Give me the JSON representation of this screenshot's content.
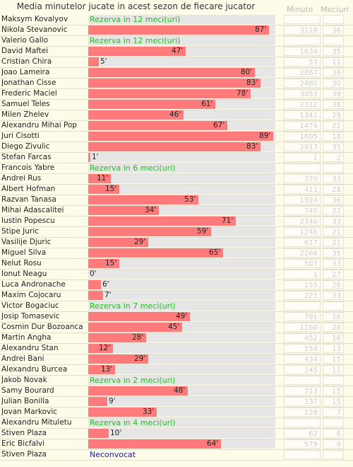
{
  "chart_data": {
    "type": "bar",
    "title": "Media minutelor jucate in acest sezon de fiecare jucator",
    "columns": {
      "minutes": "Minute",
      "matches": "Meciuri"
    },
    "xlim": [
      0,
      90
    ],
    "rows": [
      {
        "name": "Maksym Kovalyov",
        "status": "Rezerva in 12 meci(uri)",
        "avg": null,
        "avg_label": "",
        "minutes": "",
        "matches": ""
      },
      {
        "name": "Nikola Stevanovic",
        "status": "",
        "avg": 87,
        "avg_label": "87'",
        "minutes": "3118",
        "matches": "36"
      },
      {
        "name": "Valerio Gallo",
        "status": "Rezerva in 12 meci(uri)",
        "avg": null,
        "avg_label": "",
        "minutes": "",
        "matches": ""
      },
      {
        "name": "David Maftei",
        "status": "",
        "avg": 47,
        "avg_label": "47'",
        "minutes": "1634",
        "matches": "35"
      },
      {
        "name": "Cristian Chira",
        "status": "",
        "avg": 5,
        "avg_label": "5'",
        "minutes": "53",
        "matches": "11"
      },
      {
        "name": "Joao Lameira",
        "status": "",
        "avg": 80,
        "avg_label": "80'",
        "minutes": "2867",
        "matches": "36"
      },
      {
        "name": "Jonathan Cisse",
        "status": "",
        "avg": 83,
        "avg_label": "83'",
        "minutes": "2480",
        "matches": "30"
      },
      {
        "name": "Frederic Maciel",
        "status": "",
        "avg": 78,
        "avg_label": "78'",
        "minutes": "3053",
        "matches": "39"
      },
      {
        "name": "Samuel Teles",
        "status": "",
        "avg": 61,
        "avg_label": "61'",
        "minutes": "2312",
        "matches": "38"
      },
      {
        "name": "Milen Zhelev",
        "status": "",
        "avg": 46,
        "avg_label": "46'",
        "minutes": "1341",
        "matches": "29"
      },
      {
        "name": "Alexandru Mihai Pop",
        "status": "",
        "avg": 67,
        "avg_label": "67'",
        "minutes": "1474",
        "matches": "22"
      },
      {
        "name": "Juri Cisotti",
        "status": "",
        "avg": 89,
        "avg_label": "89'",
        "minutes": "1605",
        "matches": "18"
      },
      {
        "name": "Diego Zivulic",
        "status": "",
        "avg": 83,
        "avg_label": "83'",
        "minutes": "2913",
        "matches": "35"
      },
      {
        "name": "Stefan Farcas",
        "status": "",
        "avg": 1,
        "avg_label": "1'",
        "minutes": "1",
        "matches": "2"
      },
      {
        "name": "Francois Yabre",
        "status": "Rezerva in 6 meci(uri)",
        "avg": null,
        "avg_label": "",
        "minutes": "",
        "matches": ""
      },
      {
        "name": "Andrei Rus",
        "status": "",
        "avg": 11,
        "avg_label": "11'",
        "minutes": "370",
        "matches": "33"
      },
      {
        "name": "Albert Hofman",
        "status": "",
        "avg": 15,
        "avg_label": "15'",
        "minutes": "411",
        "matches": "28"
      },
      {
        "name": "Razvan Tanasa",
        "status": "",
        "avg": 53,
        "avg_label": "53'",
        "minutes": "1924",
        "matches": "36"
      },
      {
        "name": "Mihai Adascalitei",
        "status": "",
        "avg": 34,
        "avg_label": "34'",
        "minutes": "740",
        "matches": "22"
      },
      {
        "name": "Iustin Popescu",
        "status": "",
        "avg": 71,
        "avg_label": "71'",
        "minutes": "2340",
        "matches": "33"
      },
      {
        "name": "Stipe Juric",
        "status": "",
        "avg": 59,
        "avg_label": "59'",
        "minutes": "1246",
        "matches": "21"
      },
      {
        "name": "Vasilije Djuric",
        "status": "",
        "avg": 29,
        "avg_label": "29'",
        "minutes": "617",
        "matches": "21"
      },
      {
        "name": "Miguel Silva",
        "status": "",
        "avg": 65,
        "avg_label": "65'",
        "minutes": "2266",
        "matches": "35"
      },
      {
        "name": "Nelut Rosu",
        "status": "",
        "avg": 15,
        "avg_label": "15'",
        "minutes": "507",
        "matches": "33"
      },
      {
        "name": "Ionut Neagu",
        "status": "",
        "avg": 0,
        "avg_label": "0'",
        "minutes": "1",
        "matches": "27"
      },
      {
        "name": "Luca Andronache",
        "status": "",
        "avg": 6,
        "avg_label": "6'",
        "minutes": "155",
        "matches": "26"
      },
      {
        "name": "Maxim Cojocaru",
        "status": "",
        "avg": 7,
        "avg_label": "7'",
        "minutes": "221",
        "matches": "33"
      },
      {
        "name": "Victor Bogaciuc",
        "status": "Rezerva in 7 meci(uri)",
        "avg": null,
        "avg_label": "",
        "minutes": "",
        "matches": ""
      },
      {
        "name": "Josip Tomasevic",
        "status": "",
        "avg": 49,
        "avg_label": "49'",
        "minutes": "791",
        "matches": "16"
      },
      {
        "name": "Cosmin Dur Bozoanca",
        "status": "",
        "avg": 45,
        "avg_label": "45'",
        "minutes": "1260",
        "matches": "28"
      },
      {
        "name": "Martin Angha",
        "status": "",
        "avg": 28,
        "avg_label": "28'",
        "minutes": "452",
        "matches": "16"
      },
      {
        "name": "Alexandru Stan",
        "status": "",
        "avg": 12,
        "avg_label": "12'",
        "minutes": "154",
        "matches": "13"
      },
      {
        "name": "Andrei Bani",
        "status": "",
        "avg": 29,
        "avg_label": "29'",
        "minutes": "434",
        "matches": "15"
      },
      {
        "name": "Alexandru Burcea",
        "status": "",
        "avg": 13,
        "avg_label": "13'",
        "minutes": "145",
        "matches": "11"
      },
      {
        "name": "Jakob Novak",
        "status": "Rezerva in 2 meci(uri)",
        "avg": null,
        "avg_label": "",
        "minutes": "",
        "matches": ""
      },
      {
        "name": "Samy Bourard",
        "status": "",
        "avg": 48,
        "avg_label": "48'",
        "minutes": "713",
        "matches": "15"
      },
      {
        "name": "Julian Bonilla",
        "status": "",
        "avg": 9,
        "avg_label": "9'",
        "minutes": "137",
        "matches": "15"
      },
      {
        "name": "Jovan Markovic",
        "status": "",
        "avg": 33,
        "avg_label": "33'",
        "minutes": "228",
        "matches": "7"
      },
      {
        "name": "Alexandru Mituletu",
        "status": "Rezerva in 4 meci(uri)",
        "avg": null,
        "avg_label": "",
        "minutes": "",
        "matches": ""
      },
      {
        "name": "Stiven Plaza",
        "status": "",
        "avg": 10,
        "avg_label": "10'",
        "minutes": "62",
        "matches": "6"
      },
      {
        "name": "Eric Bicfalvi",
        "status": "",
        "avg": 64,
        "avg_label": "64'",
        "minutes": "579",
        "matches": "9"
      },
      {
        "name": "Stiven Plaza",
        "status": "Neconvocat",
        "avg": null,
        "avg_label": "",
        "minutes": "",
        "matches": "",
        "status_color": "#1a1aa6",
        "no_track": true
      }
    ],
    "colors": {
      "bar": "#ff7b7b",
      "track": "#e6e6e6",
      "reserve_text": "#1fbe1f",
      "not_called_text": "#1a1aa6"
    }
  }
}
